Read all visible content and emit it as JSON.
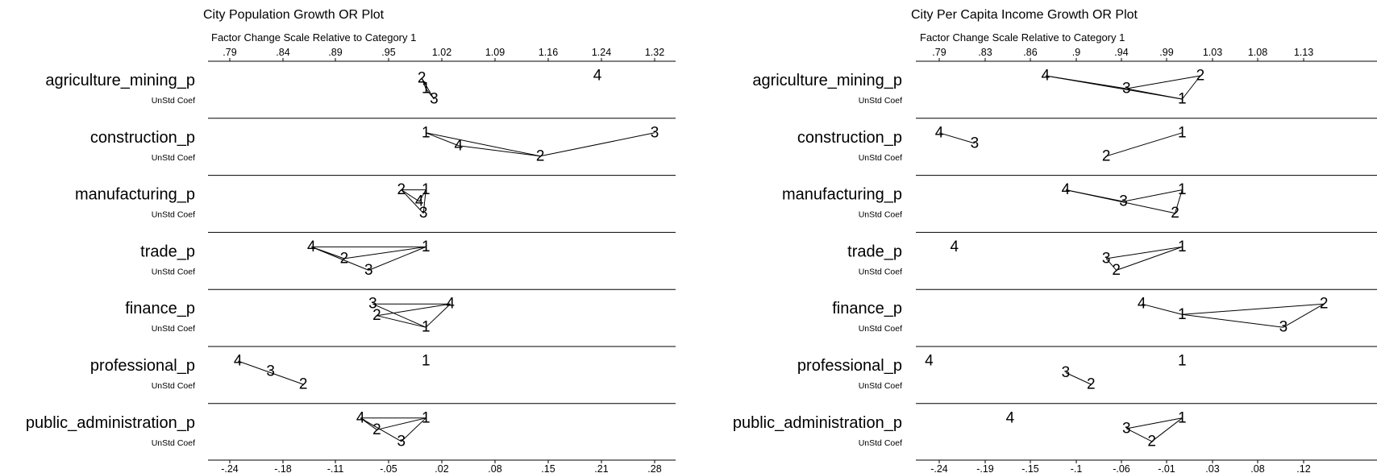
{
  "chart_data": [
    {
      "type": "scatter",
      "title": "City Population Growth OR Plot",
      "top_axis_label": "Factor Change Scale Relative to Category 1",
      "top_ticks": [
        ".79",
        ".84",
        ".89",
        ".95",
        "1.02",
        "1.09",
        "1.16",
        "1.24",
        "1.32"
      ],
      "bottom_ticks": [
        "-.24",
        "-.18",
        "-.11",
        "-.05",
        ".02",
        ".08",
        ".15",
        ".21",
        ".28"
      ],
      "xlim": [
        -0.265,
        0.3
      ],
      "coef_label": "UnStd Coef",
      "rows": [
        {
          "variable": "agriculture_mining_p",
          "points": [
            {
              "category": "1",
              "x": 0.0,
              "level": 0.55
            },
            {
              "category": "2",
              "x": -0.005,
              "level": 0.1
            },
            {
              "category": "3",
              "x": 0.01,
              "level": 1.0
            },
            {
              "category": "4",
              "x": 0.21,
              "level": 0.0
            }
          ],
          "lines": [
            [
              "2",
              "1"
            ],
            [
              "1",
              "3"
            ],
            [
              "2",
              "3"
            ]
          ]
        },
        {
          "variable": "construction_p",
          "points": [
            {
              "category": "1",
              "x": 0.0,
              "level": 0.0
            },
            {
              "category": "2",
              "x": 0.14,
              "level": 1.0
            },
            {
              "category": "3",
              "x": 0.28,
              "level": 0.0
            },
            {
              "category": "4",
              "x": 0.04,
              "level": 0.55
            }
          ],
          "lines": [
            [
              "1",
              "2"
            ],
            [
              "1",
              "4"
            ],
            [
              "4",
              "2"
            ],
            [
              "2",
              "3"
            ]
          ]
        },
        {
          "variable": "manufacturing_p",
          "points": [
            {
              "category": "1",
              "x": 0.0,
              "level": 0.0
            },
            {
              "category": "2",
              "x": -0.03,
              "level": 0.0
            },
            {
              "category": "3",
              "x": -0.003,
              "level": 1.0
            },
            {
              "category": "4",
              "x": -0.008,
              "level": 0.5
            }
          ],
          "lines": [
            [
              "2",
              "1"
            ],
            [
              "2",
              "3"
            ],
            [
              "2",
              "4"
            ],
            [
              "1",
              "3"
            ],
            [
              "1",
              "4"
            ]
          ]
        },
        {
          "variable": "trade_p",
          "points": [
            {
              "category": "1",
              "x": 0.0,
              "level": 0.0
            },
            {
              "category": "2",
              "x": -0.1,
              "level": 0.5
            },
            {
              "category": "3",
              "x": -0.07,
              "level": 1.0
            },
            {
              "category": "4",
              "x": -0.14,
              "level": 0.0
            }
          ],
          "lines": [
            [
              "4",
              "1"
            ],
            [
              "4",
              "2"
            ],
            [
              "4",
              "3"
            ],
            [
              "2",
              "1"
            ],
            [
              "3",
              "1"
            ]
          ]
        },
        {
          "variable": "finance_p",
          "points": [
            {
              "category": "1",
              "x": 0.0,
              "level": 1.0
            },
            {
              "category": "2",
              "x": -0.06,
              "level": 0.5
            },
            {
              "category": "3",
              "x": -0.065,
              "level": 0.0
            },
            {
              "category": "4",
              "x": 0.03,
              "level": 0.0
            }
          ],
          "lines": [
            [
              "3",
              "4"
            ],
            [
              "3",
              "1"
            ],
            [
              "2",
              "4"
            ],
            [
              "2",
              "1"
            ],
            [
              "1",
              "4"
            ]
          ]
        },
        {
          "variable": "professional_p",
          "points": [
            {
              "category": "1",
              "x": 0.0,
              "level": 0.0
            },
            {
              "category": "2",
              "x": -0.15,
              "level": 1.0
            },
            {
              "category": "3",
              "x": -0.19,
              "level": 0.45
            },
            {
              "category": "4",
              "x": -0.23,
              "level": 0.0
            }
          ],
          "lines": [
            [
              "4",
              "2"
            ]
          ]
        },
        {
          "variable": "public_administration_p",
          "points": [
            {
              "category": "1",
              "x": 0.0,
              "level": 0.0
            },
            {
              "category": "2",
              "x": -0.06,
              "level": 0.5
            },
            {
              "category": "3",
              "x": -0.03,
              "level": 1.0
            },
            {
              "category": "4",
              "x": -0.08,
              "level": 0.0
            }
          ],
          "lines": [
            [
              "4",
              "1"
            ],
            [
              "4",
              "2"
            ],
            [
              "4",
              "3"
            ],
            [
              "2",
              "1"
            ],
            [
              "3",
              "1"
            ]
          ]
        }
      ]
    },
    {
      "type": "scatter",
      "title": "City Per Capita Income Growth OR Plot",
      "top_axis_label": "Factor Change Scale Relative to Category 1",
      "top_ticks": [
        ".79",
        ".83",
        ".86",
        ".9",
        ".94",
        ".99",
        "1.03",
        "1.08",
        "1.13"
      ],
      "bottom_ticks": [
        "-.24",
        "-.19",
        "-.15",
        "-.1",
        "-.06",
        "-.01",
        ".03",
        ".08",
        ".12"
      ],
      "xlim": [
        -0.265,
        0.14
      ],
      "coef_label": "UnStd Coef",
      "rows": [
        {
          "variable": "agriculture_mining_p",
          "points": [
            {
              "category": "1",
              "x": 0.0,
              "level": 1.0
            },
            {
              "category": "2",
              "x": 0.018,
              "level": 0.0
            },
            {
              "category": "3",
              "x": -0.055,
              "level": 0.55
            },
            {
              "category": "4",
              "x": -0.135,
              "level": 0.0
            }
          ],
          "lines": [
            [
              "4",
              "3"
            ],
            [
              "3",
              "2"
            ],
            [
              "3",
              "1"
            ],
            [
              "2",
              "1"
            ],
            [
              "4",
              "1"
            ]
          ]
        },
        {
          "variable": "construction_p",
          "points": [
            {
              "category": "1",
              "x": 0.0,
              "level": 0.0
            },
            {
              "category": "2",
              "x": -0.075,
              "level": 1.0
            },
            {
              "category": "3",
              "x": -0.205,
              "level": 0.45
            },
            {
              "category": "4",
              "x": -0.24,
              "level": 0.0
            }
          ],
          "lines": [
            [
              "4",
              "3"
            ],
            [
              "1",
              "2"
            ]
          ]
        },
        {
          "variable": "manufacturing_p",
          "points": [
            {
              "category": "1",
              "x": 0.0,
              "level": 0.0
            },
            {
              "category": "2",
              "x": -0.007,
              "level": 1.0
            },
            {
              "category": "3",
              "x": -0.058,
              "level": 0.5
            },
            {
              "category": "4",
              "x": -0.115,
              "level": 0.0
            }
          ],
          "lines": [
            [
              "4",
              "3"
            ],
            [
              "3",
              "1"
            ],
            [
              "4",
              "2"
            ],
            [
              "1",
              "2"
            ]
          ]
        },
        {
          "variable": "trade_p",
          "points": [
            {
              "category": "1",
              "x": 0.0,
              "level": 0.0
            },
            {
              "category": "2",
              "x": -0.065,
              "level": 1.0
            },
            {
              "category": "3",
              "x": -0.075,
              "level": 0.5
            },
            {
              "category": "4",
              "x": -0.225,
              "level": 0.0
            }
          ],
          "lines": [
            [
              "3",
              "1"
            ],
            [
              "2",
              "1"
            ],
            [
              "3",
              "2"
            ]
          ]
        },
        {
          "variable": "finance_p",
          "points": [
            {
              "category": "1",
              "x": 0.0,
              "level": 0.45
            },
            {
              "category": "2",
              "x": 0.14,
              "level": 0.0
            },
            {
              "category": "3",
              "x": 0.1,
              "level": 1.0
            },
            {
              "category": "4",
              "x": -0.04,
              "level": 0.0
            }
          ],
          "lines": [
            [
              "4",
              "1"
            ],
            [
              "1",
              "2"
            ],
            [
              "1",
              "3"
            ],
            [
              "3",
              "2"
            ]
          ]
        },
        {
          "variable": "professional_p",
          "points": [
            {
              "category": "1",
              "x": 0.0,
              "level": 0.0
            },
            {
              "category": "2",
              "x": -0.09,
              "level": 1.0
            },
            {
              "category": "3",
              "x": -0.115,
              "level": 0.5
            },
            {
              "category": "4",
              "x": -0.25,
              "level": 0.0
            }
          ],
          "lines": [
            [
              "3",
              "2"
            ]
          ]
        },
        {
          "variable": "public_administration_p",
          "points": [
            {
              "category": "1",
              "x": 0.0,
              "level": 0.0
            },
            {
              "category": "2",
              "x": -0.03,
              "level": 1.0
            },
            {
              "category": "3",
              "x": -0.055,
              "level": 0.45
            },
            {
              "category": "4",
              "x": -0.17,
              "level": 0.0
            }
          ],
          "lines": [
            [
              "3",
              "1"
            ],
            [
              "2",
              "1"
            ],
            [
              "3",
              "2"
            ]
          ]
        }
      ]
    }
  ]
}
